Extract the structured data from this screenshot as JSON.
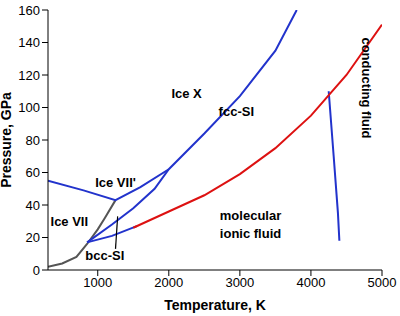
{
  "chart_data": {
    "type": "line",
    "x_label": "Temperature,  K",
    "y_label": "Pressure, GPa",
    "xlim": [
      300,
      5000
    ],
    "xticks": [
      1000,
      2000,
      3000,
      4000,
      5000
    ],
    "ylim": [
      0,
      160
    ],
    "yticks": [
      0,
      20,
      40,
      60,
      80,
      100,
      120,
      140,
      160
    ],
    "grid": false,
    "series": [
      {
        "color": "#555555",
        "x": [
          300,
          500,
          700,
          850,
          1000,
          1100,
          1250
        ],
        "values": [
          2,
          4,
          8,
          16,
          25,
          32,
          43
        ]
      },
      {
        "color": "#2233cc",
        "x": [
          300,
          800,
          1250,
          1600,
          2000
        ],
        "values": [
          55,
          49,
          43,
          51,
          62
        ]
      },
      {
        "color": "#2233cc",
        "x": [
          850,
          1200,
          1500,
          1800,
          2000,
          2500,
          3000,
          3500,
          3800
        ],
        "values": [
          17,
          28,
          38,
          50,
          62,
          84,
          107,
          135,
          160
        ]
      },
      {
        "color": "#2233cc",
        "x": [
          850,
          1200,
          1550
        ],
        "values": [
          17,
          21,
          27
        ]
      },
      {
        "color": "#2233cc",
        "x": [
          4250,
          4320,
          4380,
          4400
        ],
        "values": [
          110,
          70,
          35,
          18
        ]
      },
      {
        "color": "#dd1111",
        "x": [
          1500,
          2000,
          2500,
          3000,
          3500,
          4000,
          4500,
          5000
        ],
        "values": [
          26,
          36,
          46,
          59,
          75,
          95,
          120,
          151
        ]
      }
    ],
    "annotations": [
      {
        "text": "Ice X",
        "x": 2250,
        "y": 108
      },
      {
        "text": "fcc-SI",
        "x": 2950,
        "y": 97
      },
      {
        "text": "Ice VII'",
        "x": 1250,
        "y": 53
      },
      {
        "text": "Ice VII",
        "x": 600,
        "y": 29
      },
      {
        "text": "bcc-SI",
        "x": 1100,
        "y": 8,
        "arrow": [
          1280,
          33
        ]
      },
      {
        "text": "molecular",
        "x": 3150,
        "y": 33
      },
      {
        "text": "ionic fluid",
        "x": 3150,
        "y": 22
      },
      {
        "text": "conducting fluid",
        "x": 4760,
        "y": 112,
        "rotate": true
      }
    ]
  }
}
